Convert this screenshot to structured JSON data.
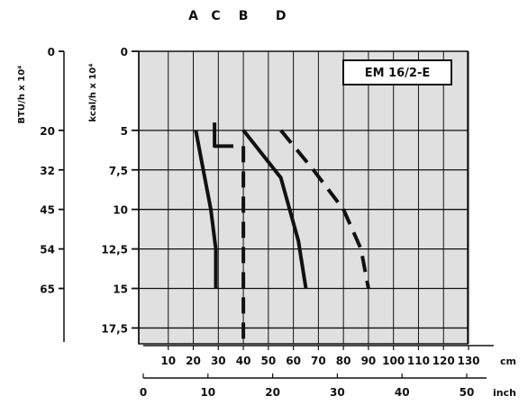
{
  "chart_data": {
    "type": "line",
    "title": "EM 16/2-E",
    "y_left_label": "BTU/h x 10⁴",
    "y_right_label": "kcal/h x 10⁴",
    "y_kcal_ticks": [
      "0",
      "5",
      "7,5",
      "10",
      "12,5",
      "15",
      "17,5"
    ],
    "y_kcal_values": [
      0,
      5,
      7.5,
      10,
      12.5,
      15,
      17.5
    ],
    "y_btu_ticks": [
      "0",
      "20",
      "32",
      "45",
      "54",
      "65"
    ],
    "y_btu_at_kcal": [
      0,
      5,
      7.5,
      10,
      12.5,
      15
    ],
    "ylim": [
      0,
      17.5
    ],
    "ylim_display": [
      0,
      18.5
    ],
    "y_inverted": true,
    "x_cm_label": "cm",
    "x_cm_ticks": [
      "10",
      "20",
      "30",
      "40",
      "50",
      "60",
      "70",
      "80",
      "90",
      "100",
      "110",
      "120",
      "130"
    ],
    "x_cm_values": [
      10,
      20,
      30,
      40,
      50,
      60,
      70,
      80,
      90,
      100,
      110,
      120,
      130
    ],
    "x_inch_label": "inch",
    "x_inch_ticks": [
      "0",
      "10",
      "20",
      "30",
      "40",
      "50"
    ],
    "x_inch_values": [
      0,
      10,
      20,
      30,
      40,
      50
    ],
    "xlim_cm": [
      0,
      130
    ],
    "grid": true,
    "series": [
      {
        "name": "A",
        "style": "solid",
        "header_x": 20,
        "x": [
          21,
          24,
          27,
          29,
          29
        ],
        "y": [
          5,
          7.5,
          10,
          12.5,
          15
        ]
      },
      {
        "name": "C",
        "style": "solid",
        "header_x": 29,
        "x": [
          28.5,
          28.5,
          36
        ],
        "y": [
          4.5,
          6,
          6
        ]
      },
      {
        "name": "B",
        "style": "dashed",
        "header_x": 40,
        "x": [
          40,
          40
        ],
        "y": [
          6,
          18.5
        ]
      },
      {
        "name": "D",
        "style": "dashed",
        "header_x": 55,
        "x": [
          55,
          68,
          80,
          87,
          90
        ],
        "y": [
          5,
          7.5,
          10,
          12.5,
          15
        ]
      },
      {
        "name": "",
        "style": "solid",
        "header_x": null,
        "x": [
          40,
          55,
          62,
          65
        ],
        "y": [
          5,
          8,
          12,
          15
        ]
      }
    ]
  },
  "colors": {
    "line": "#111111",
    "plot_bg": "#e0e0e0",
    "grid": "#111111",
    "title_box": "#ffffff"
  }
}
